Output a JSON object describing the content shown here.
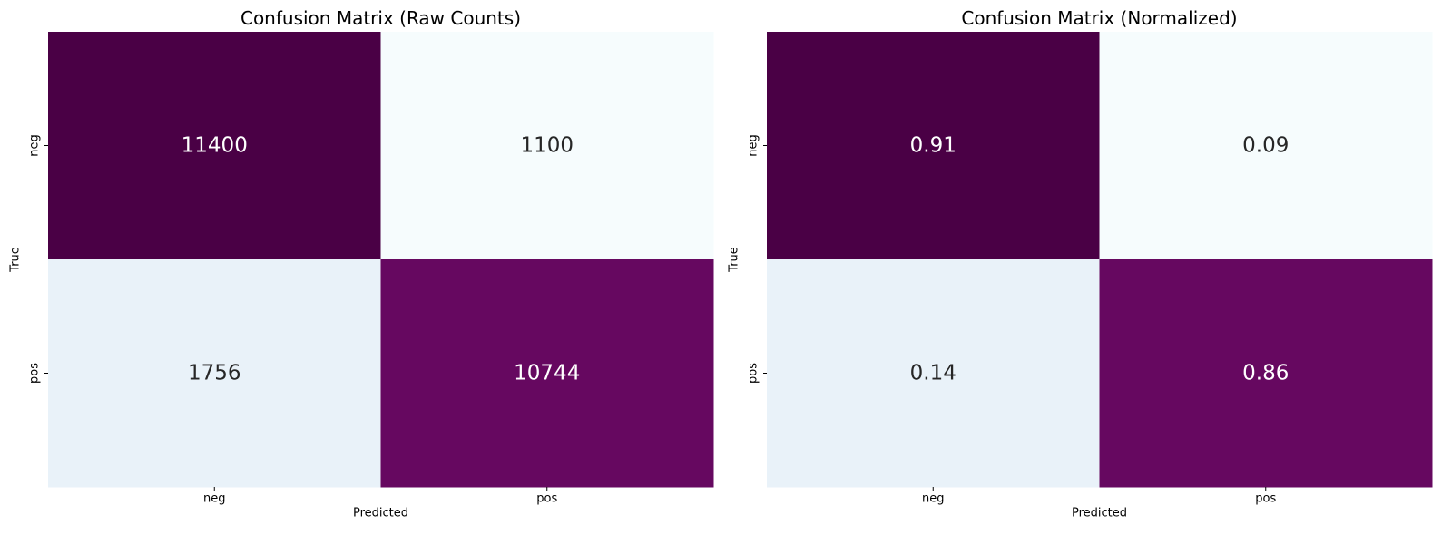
{
  "chart_data": [
    {
      "type": "heatmap",
      "title": "Confusion Matrix (Raw Counts)",
      "xlabel": "Predicted",
      "ylabel": "True",
      "x_categories": [
        "neg",
        "pos"
      ],
      "y_categories": [
        "neg",
        "pos"
      ],
      "values": [
        [
          11400,
          1100
        ],
        [
          1756,
          10744
        ]
      ],
      "cell_labels": [
        [
          "11400",
          "1100"
        ],
        [
          "1756",
          "10744"
        ]
      ],
      "cell_colors": [
        [
          "#4a0045",
          "#f6fcfd"
        ],
        [
          "#e9f2f9",
          "#660860"
        ]
      ],
      "cell_text_colors": [
        [
          "#ffffff",
          "#262626"
        ],
        [
          "#262626",
          "#ffffff"
        ]
      ],
      "colormap": "BuPu",
      "colorbar": false
    },
    {
      "type": "heatmap",
      "title": "Confusion Matrix (Normalized)",
      "xlabel": "Predicted",
      "ylabel": "True",
      "x_categories": [
        "neg",
        "pos"
      ],
      "y_categories": [
        "neg",
        "pos"
      ],
      "values": [
        [
          0.91,
          0.09
        ],
        [
          0.14,
          0.86
        ]
      ],
      "cell_labels": [
        [
          "0.91",
          "0.09"
        ],
        [
          "0.14",
          "0.86"
        ]
      ],
      "cell_colors": [
        [
          "#4a0045",
          "#f6fcfd"
        ],
        [
          "#e9f2f9",
          "#660860"
        ]
      ],
      "cell_text_colors": [
        [
          "#ffffff",
          "#262626"
        ],
        [
          "#262626",
          "#ffffff"
        ]
      ],
      "colormap": "BuPu",
      "colorbar": false
    }
  ]
}
